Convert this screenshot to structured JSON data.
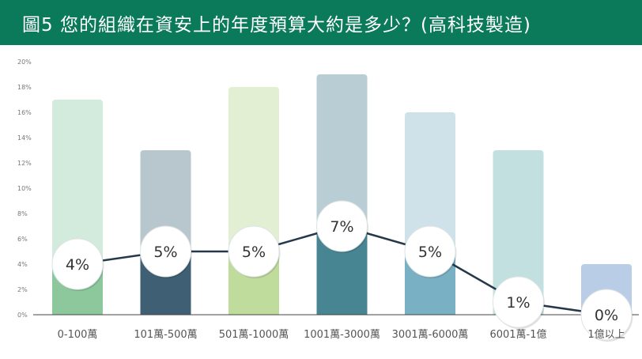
{
  "banner": {
    "title": "圖5  您的組織在資安上的年度預算大約是多少？(高科技製造)"
  },
  "chart_data": {
    "type": "bar",
    "title": "圖5  您的組織在資安上的年度預算大約是多少？(高科技製造)",
    "categories": [
      "0-100萬",
      "101萬-500萬",
      "501萬-1000萬",
      "1001萬-3000萬",
      "3001萬-6000萬",
      "6001萬-1億",
      "1億以上"
    ],
    "series": [
      {
        "type": "bar",
        "values": [
          17,
          13,
          18,
          19,
          16,
          13,
          4
        ]
      },
      {
        "type": "line",
        "values": [
          4,
          5,
          5,
          7,
          5,
          1,
          0
        ]
      }
    ],
    "point_labels": [
      "4%",
      "5%",
      "5%",
      "7%",
      "5%",
      "1%",
      "0%"
    ],
    "yticks": [
      "0%",
      "2%",
      "4%",
      "6%",
      "8%",
      "10%",
      "12%",
      "14%",
      "16%",
      "18%",
      "20%"
    ],
    "ylim": [
      0,
      20
    ],
    "xlabel": "",
    "ylabel": "",
    "grid": false,
    "colors": {
      "bar_light": [
        "#d3ebdc",
        "#b8c7ce",
        "#e3efd3",
        "#b9ced4",
        "#cfe2ea",
        "#c2e0e0",
        "#b9cde6"
      ],
      "bar_dark": [
        "#8dc89c",
        "#3f5f74",
        "#c0dc9c",
        "#488592",
        "#7ab0c4",
        "#c2e0e0",
        "#b9cde6"
      ],
      "line": "#24384a",
      "banner": "#0b7a5a"
    }
  }
}
